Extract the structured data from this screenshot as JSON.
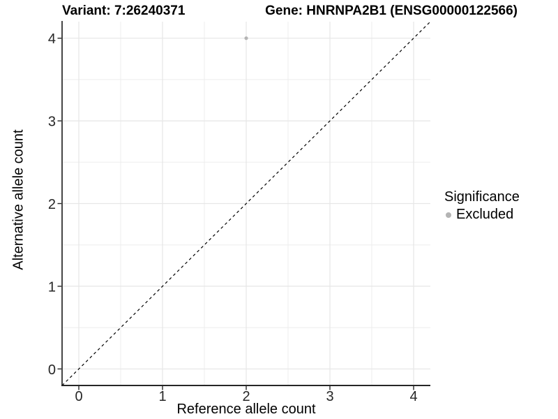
{
  "page": {
    "background": "#ffffff"
  },
  "header": {
    "title_left": "Variant: 7:26240371",
    "title_right": "Gene: HNRNPA2B1 (ENSG00000122566)"
  },
  "chart_data": {
    "type": "scatter",
    "title_left": "Variant: 7:26240371",
    "title_right": "Gene: HNRNPA2B1 (ENSG00000122566)",
    "xlabel": "Reference allele count",
    "ylabel": "Alternative allele count",
    "xlim": [
      -0.2,
      4.2
    ],
    "ylim": [
      -0.2,
      4.2
    ],
    "xticks": [
      0,
      1,
      2,
      3,
      4
    ],
    "yticks": [
      0,
      1,
      2,
      3,
      4
    ],
    "xminor": [
      0.5,
      1.5,
      2.5,
      3.5
    ],
    "yminor": [
      0.5,
      1.5,
      2.5,
      3.5
    ],
    "grid": true,
    "series": [
      {
        "name": "Excluded",
        "color": "#b4b4b4",
        "points": [
          {
            "x": 2,
            "y": 4
          }
        ]
      }
    ],
    "reference_line": {
      "type": "identity",
      "slope": 1,
      "intercept": 0,
      "style": "dashed",
      "color": "#000000"
    },
    "legend": {
      "title": "Significance",
      "position": "right",
      "items": [
        {
          "label": "Excluded",
          "color": "#b4b4b4"
        }
      ]
    },
    "colors": {
      "grid_major": "#e6e6e6",
      "grid_minor": "#ededed",
      "axis_line": "#262626",
      "tick_mark": "#262626",
      "tick_text": "#262626",
      "point": "#b4b4b4"
    }
  }
}
